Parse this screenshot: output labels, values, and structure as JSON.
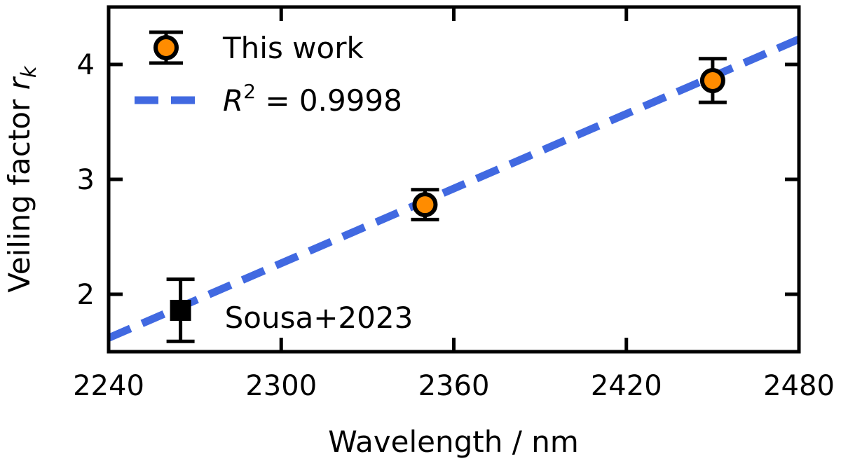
{
  "chart_data": {
    "type": "scatter",
    "title": "",
    "xlabel": "Wavelength / nm",
    "ylabel": {
      "prefix": "Veiling factor ",
      "symbol": "r",
      "subscript": "k"
    },
    "xlim": [
      2240,
      2480
    ],
    "ylim": [
      1.5,
      4.5
    ],
    "xticks": [
      2240,
      2300,
      2360,
      2420,
      2480
    ],
    "yticks": [
      2,
      3,
      4
    ],
    "grid": false,
    "legend_position": "top-left",
    "series": [
      {
        "name": "This work",
        "kind": "errorbar",
        "marker": "circle",
        "marker_color": "#ff8c00",
        "edge_color": "#000000",
        "x": [
          2350,
          2450
        ],
        "y": [
          2.78,
          3.86
        ],
        "yerr": [
          0.13,
          0.19
        ]
      },
      {
        "name": "Sousa+2023",
        "kind": "errorbar",
        "marker": "square",
        "marker_color": "#000000",
        "edge_color": "#000000",
        "x": [
          2265
        ],
        "y": [
          1.86
        ],
        "yerr": [
          0.27
        ]
      }
    ],
    "fit_line": {
      "legend": {
        "symbol": "R",
        "superscript": "2",
        "text": " = 0.9998"
      },
      "color": "#4169e1",
      "style": "dashed",
      "x": [
        2240,
        2480
      ],
      "y": [
        1.62,
        4.22
      ]
    },
    "annotations": [
      {
        "text": "Sousa+2023",
        "x": 2275,
        "y": 1.86
      }
    ]
  }
}
